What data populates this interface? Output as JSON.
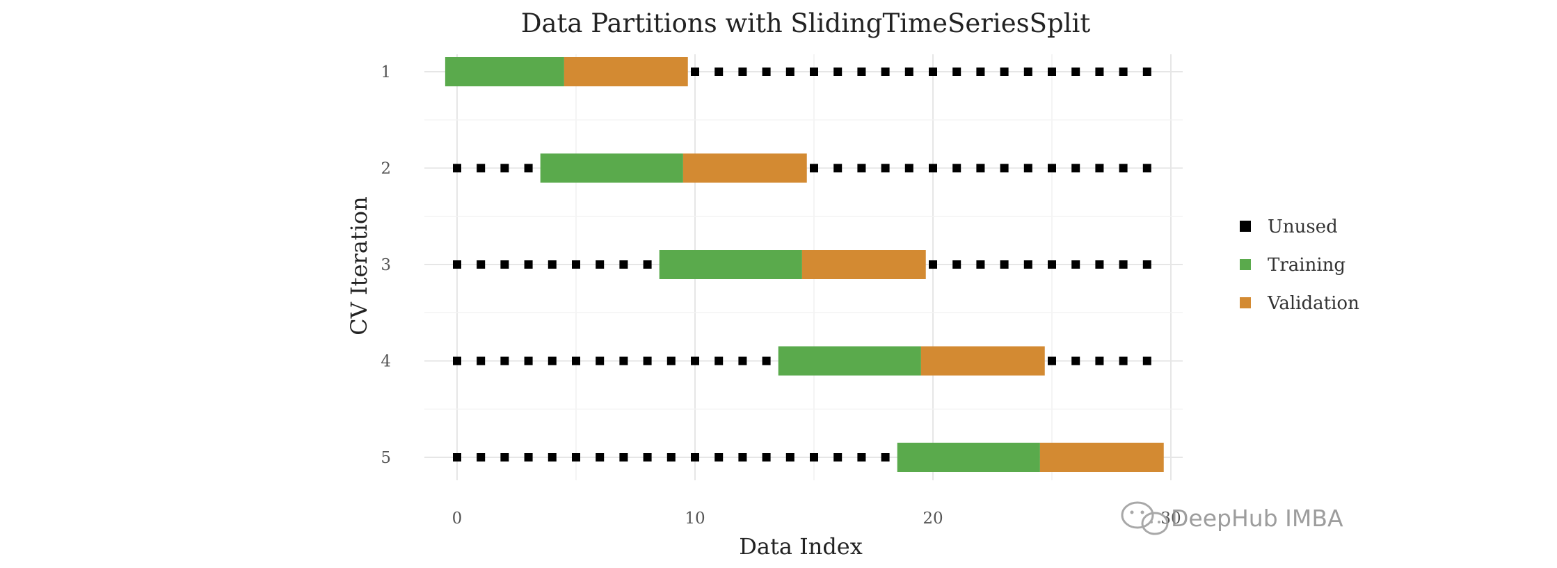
{
  "chart_data": {
    "type": "bar",
    "title": "Data Partitions with SlidingTimeSeriesSplit",
    "xlabel": "Data Index",
    "ylabel": "CV Iteration",
    "xlim": [
      -1,
      30
    ],
    "xticks": [
      0,
      10,
      20,
      30
    ],
    "categories": [
      "1",
      "2",
      "3",
      "4",
      "5"
    ],
    "grid": true,
    "legend_position": "right",
    "legend": [
      {
        "name": "Unused",
        "color": "#000000"
      },
      {
        "name": "Training",
        "color": "#5aaa4c"
      },
      {
        "name": "Validation",
        "color": "#d38a32"
      }
    ],
    "series": [
      {
        "iteration": "1",
        "training": [
          -0.5,
          4.5
        ],
        "validation": [
          4.5,
          9.7
        ],
        "unused": [
          10,
          11,
          12,
          13,
          14,
          15,
          16,
          17,
          18,
          19,
          20,
          21,
          22,
          23,
          24,
          25,
          26,
          27,
          28,
          29
        ]
      },
      {
        "iteration": "2",
        "training": [
          3.5,
          9.5
        ],
        "validation": [
          9.5,
          14.7
        ],
        "unused": [
          0,
          1,
          2,
          3,
          15,
          16,
          17,
          18,
          19,
          20,
          21,
          22,
          23,
          24,
          25,
          26,
          27,
          28,
          29
        ]
      },
      {
        "iteration": "3",
        "training": [
          8.5,
          14.5
        ],
        "validation": [
          14.5,
          19.7
        ],
        "unused": [
          0,
          1,
          2,
          3,
          4,
          5,
          6,
          7,
          8,
          20,
          21,
          22,
          23,
          24,
          25,
          26,
          27,
          28,
          29
        ]
      },
      {
        "iteration": "4",
        "training": [
          13.5,
          19.5
        ],
        "validation": [
          19.5,
          24.7
        ],
        "unused": [
          0,
          1,
          2,
          3,
          4,
          5,
          6,
          7,
          8,
          9,
          10,
          11,
          12,
          13,
          25,
          26,
          27,
          28,
          29
        ]
      },
      {
        "iteration": "5",
        "training": [
          18.5,
          24.5
        ],
        "validation": [
          24.5,
          29.7
        ],
        "unused": [
          0,
          1,
          2,
          3,
          4,
          5,
          6,
          7,
          8,
          9,
          10,
          11,
          12,
          13,
          14,
          15,
          16,
          17,
          18
        ]
      }
    ]
  },
  "watermark": {
    "text": "DeepHub IMBA",
    "icon": "wechat-logo-icon"
  }
}
